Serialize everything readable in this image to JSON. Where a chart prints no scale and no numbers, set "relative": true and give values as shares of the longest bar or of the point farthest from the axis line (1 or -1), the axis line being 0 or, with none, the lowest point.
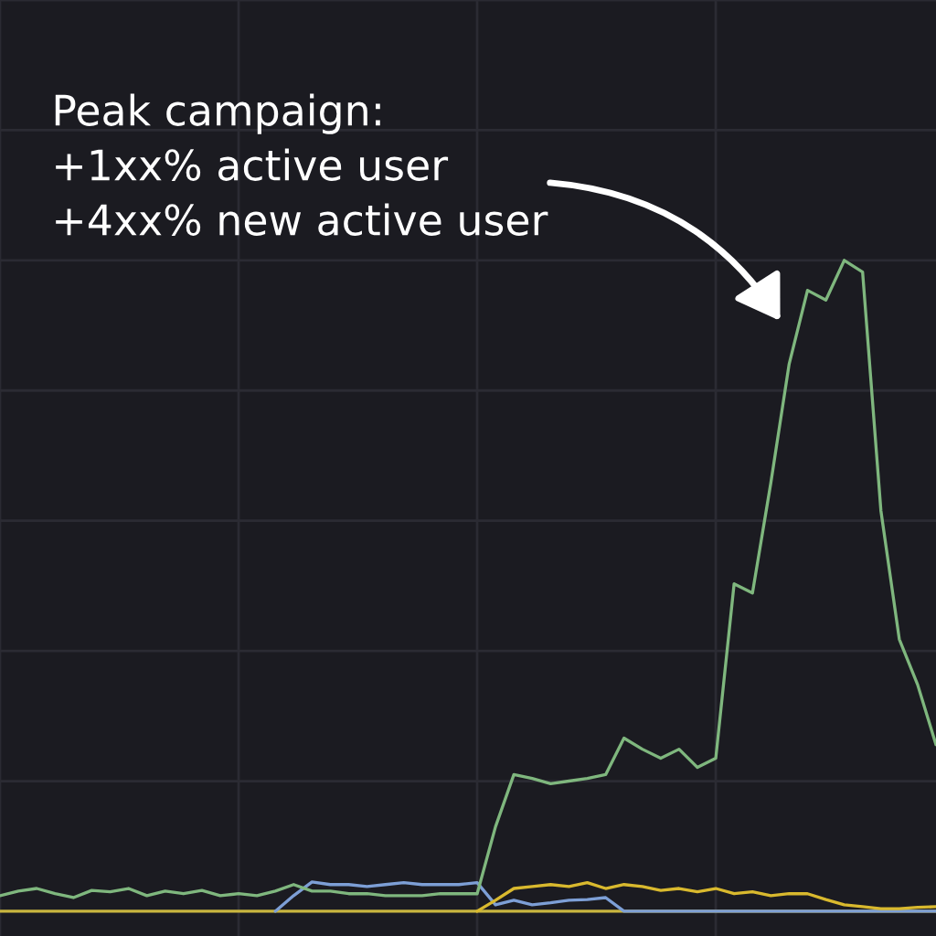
{
  "chart_data": {
    "type": "line",
    "relative": true,
    "grid": true,
    "categories": [
      null,
      null,
      null,
      null,
      null,
      null,
      null,
      null,
      null,
      null,
      null,
      null,
      null,
      null,
      null,
      null,
      null,
      null,
      null,
      null,
      null,
      null,
      null,
      null,
      null,
      null,
      null,
      null,
      null,
      null,
      null,
      null,
      null,
      null,
      null,
      null,
      null,
      null,
      null,
      null,
      null,
      null,
      null,
      null,
      null,
      null,
      null,
      null,
      null,
      null,
      null,
      null
    ],
    "series": [
      {
        "color": "#c9b63f",
        "values": [
          0,
          0,
          0,
          0,
          0,
          0,
          0,
          0,
          0,
          0,
          0,
          0,
          0,
          0,
          0,
          0,
          0,
          0,
          0,
          0,
          0,
          0,
          0,
          0,
          0,
          0,
          0,
          0,
          0,
          0,
          0,
          0,
          0,
          0,
          0,
          0,
          0,
          0,
          0,
          0,
          0,
          0,
          0,
          0,
          0,
          0,
          0,
          0,
          0,
          0,
          0,
          0
        ]
      },
      {
        "color": "#7d9fd6",
        "values": [
          null,
          null,
          null,
          null,
          null,
          null,
          null,
          null,
          null,
          null,
          null,
          null,
          null,
          null,
          null,
          0,
          0.024,
          0.045,
          0.041,
          0.041,
          0.038,
          0.041,
          0.044,
          0.041,
          0.041,
          0.041,
          0.044,
          0.01,
          0.017,
          0.01,
          0.013,
          0.017,
          0.018,
          0.021,
          0,
          0,
          0,
          0,
          0,
          0,
          0,
          0,
          0,
          0,
          0,
          0,
          0,
          0,
          0,
          0,
          0,
          0
        ]
      },
      {
        "color": "#d9b92e",
        "values": [
          null,
          null,
          null,
          null,
          null,
          null,
          null,
          null,
          null,
          null,
          null,
          null,
          null,
          null,
          null,
          null,
          null,
          null,
          null,
          null,
          null,
          null,
          null,
          null,
          null,
          null,
          0,
          0.017,
          0.035,
          0.038,
          0.041,
          0.038,
          0.044,
          0.035,
          0.041,
          0.038,
          0.032,
          0.035,
          0.03,
          0.035,
          0.027,
          0.03,
          0.024,
          0.027,
          0.027,
          0.018,
          0.01,
          0.007,
          0.004,
          0.004,
          0.006,
          0.007
        ]
      },
      {
        "color": "#7fb77e",
        "values": [
          0.024,
          0.031,
          0.035,
          0.027,
          0.021,
          0.032,
          0.03,
          0.035,
          0.024,
          0.031,
          0.027,
          0.032,
          0.024,
          0.027,
          0.024,
          0.031,
          0.041,
          0.031,
          0.031,
          0.027,
          0.027,
          0.024,
          0.024,
          0.024,
          0.027,
          0.027,
          0.027,
          0.13,
          0.21,
          0.204,
          0.196,
          0.2,
          0.204,
          0.21,
          0.266,
          0.249,
          0.235,
          0.249,
          0.221,
          0.235,
          0.503,
          0.489,
          0.658,
          0.841,
          0.954,
          0.939,
          1,
          0.982,
          0.615,
          0.418,
          0.348,
          0.256
        ]
      }
    ],
    "annotations": [
      "Peak campaign:\n+1xx% active user\n+4xx% new active user"
    ]
  }
}
